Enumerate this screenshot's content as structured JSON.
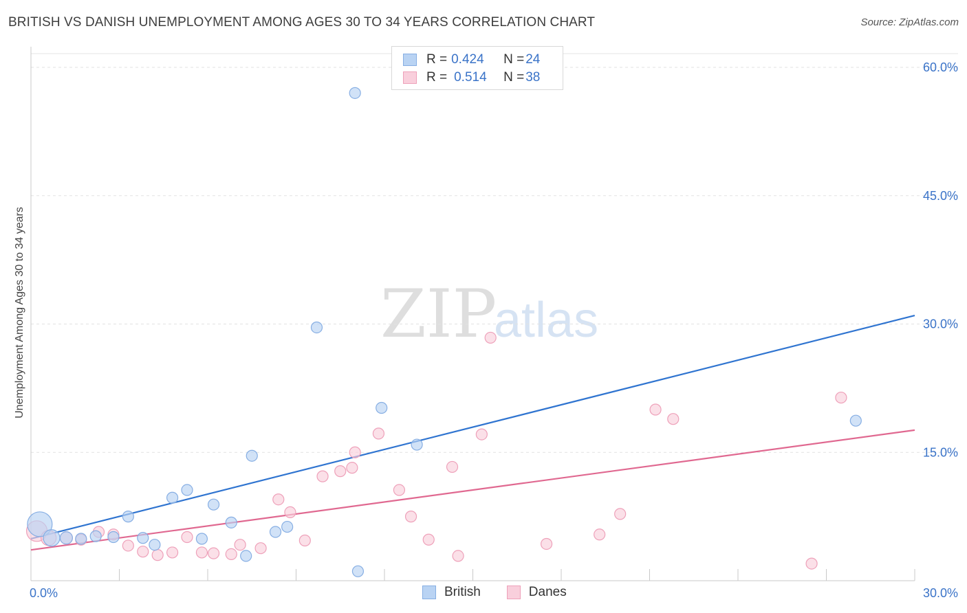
{
  "title": "BRITISH VS DANISH UNEMPLOYMENT AMONG AGES 30 TO 34 YEARS CORRELATION CHART",
  "source": "Source: ZipAtlas.com",
  "watermark": {
    "zip": "ZIP",
    "atlas": "atlas"
  },
  "legend": {
    "rows": [
      {
        "r_label": "R = ",
        "r_value": "0.424",
        "n_label": "N = ",
        "n_value": "24"
      },
      {
        "r_label": "R = ",
        "r_value": "0.514",
        "n_label": "N = ",
        "n_value": "38"
      }
    ]
  },
  "bottom_legend": {
    "british": "British",
    "danes": "Danes"
  },
  "colors": {
    "british_fill": "#b9d3f3",
    "british_stroke": "#86aee3",
    "british_line": "#2f74d0",
    "danes_fill": "#f9cfdc",
    "danes_stroke": "#eea0b9",
    "danes_line": "#e06890",
    "tick_text": "#3a73c8"
  },
  "chart_data": {
    "type": "scatter",
    "title": "BRITISH VS DANISH UNEMPLOYMENT AMONG AGES 30 TO 34 YEARS CORRELATION CHART",
    "xlabel": "",
    "ylabel": "Unemployment Among Ages 30 to 34 years",
    "xlim": [
      0,
      30
    ],
    "ylim": [
      0,
      62
    ],
    "x_tick_labels": [
      "0.0%",
      "30.0%"
    ],
    "y_ticks": [
      15,
      30,
      45,
      60
    ],
    "y_tick_labels": [
      "15.0%",
      "30.0%",
      "45.0%",
      "60.0%"
    ],
    "grid": true,
    "legend_position": "top-center",
    "series": [
      {
        "name": "British",
        "R": 0.424,
        "N": 24,
        "trend": [
          [
            0,
            4.9
          ],
          [
            30,
            31.0
          ]
        ],
        "points": [
          [
            0.3,
            6.6,
            18
          ],
          [
            0.7,
            5.0,
            12
          ],
          [
            1.2,
            5.0,
            9
          ],
          [
            1.7,
            4.9,
            8
          ],
          [
            2.2,
            5.2,
            8
          ],
          [
            2.8,
            5.1,
            8
          ],
          [
            3.3,
            7.5,
            8
          ],
          [
            3.8,
            5.0,
            8
          ],
          [
            4.2,
            4.2,
            8
          ],
          [
            4.8,
            9.7,
            8
          ],
          [
            5.3,
            10.6,
            8
          ],
          [
            5.8,
            4.9,
            8
          ],
          [
            6.2,
            8.9,
            8
          ],
          [
            6.8,
            6.8,
            8
          ],
          [
            7.3,
            2.9,
            8
          ],
          [
            7.5,
            14.6,
            8
          ],
          [
            8.3,
            5.7,
            8
          ],
          [
            8.7,
            6.3,
            8
          ],
          [
            9.7,
            29.6,
            8
          ],
          [
            11.0,
            57.0,
            8
          ],
          [
            11.1,
            1.1,
            8
          ],
          [
            11.9,
            20.2,
            8
          ],
          [
            13.1,
            15.9,
            8
          ],
          [
            28.0,
            18.7,
            8
          ]
        ]
      },
      {
        "name": "Danes",
        "R": 0.514,
        "N": 38,
        "trend": [
          [
            0,
            3.6
          ],
          [
            30,
            17.6
          ]
        ],
        "points": [
          [
            0.2,
            5.8,
            15
          ],
          [
            0.6,
            5.0,
            11
          ],
          [
            1.2,
            5.0,
            9
          ],
          [
            1.7,
            4.8,
            8
          ],
          [
            2.3,
            5.7,
            8
          ],
          [
            2.8,
            5.4,
            8
          ],
          [
            3.3,
            4.1,
            8
          ],
          [
            3.8,
            3.4,
            8
          ],
          [
            4.3,
            3.0,
            8
          ],
          [
            4.8,
            3.3,
            8
          ],
          [
            5.3,
            5.1,
            8
          ],
          [
            5.8,
            3.3,
            8
          ],
          [
            6.2,
            3.2,
            8
          ],
          [
            6.8,
            3.1,
            8
          ],
          [
            7.1,
            4.2,
            8
          ],
          [
            7.8,
            3.8,
            8
          ],
          [
            8.4,
            9.5,
            8
          ],
          [
            8.8,
            8.0,
            8
          ],
          [
            9.3,
            4.7,
            8
          ],
          [
            9.9,
            12.2,
            8
          ],
          [
            10.5,
            12.8,
            8
          ],
          [
            10.9,
            13.2,
            8
          ],
          [
            11.0,
            15.0,
            8
          ],
          [
            11.8,
            17.2,
            8
          ],
          [
            12.5,
            10.6,
            8
          ],
          [
            12.9,
            7.5,
            8
          ],
          [
            13.5,
            4.8,
            8
          ],
          [
            14.3,
            13.3,
            8
          ],
          [
            14.5,
            2.9,
            8
          ],
          [
            15.3,
            17.1,
            8
          ],
          [
            15.6,
            28.4,
            8
          ],
          [
            17.5,
            4.3,
            8
          ],
          [
            19.3,
            5.4,
            8
          ],
          [
            20.0,
            7.8,
            8
          ],
          [
            21.2,
            20.0,
            8
          ],
          [
            21.8,
            18.9,
            8
          ],
          [
            26.5,
            2.0,
            8
          ],
          [
            27.5,
            21.4,
            8
          ]
        ]
      }
    ]
  }
}
